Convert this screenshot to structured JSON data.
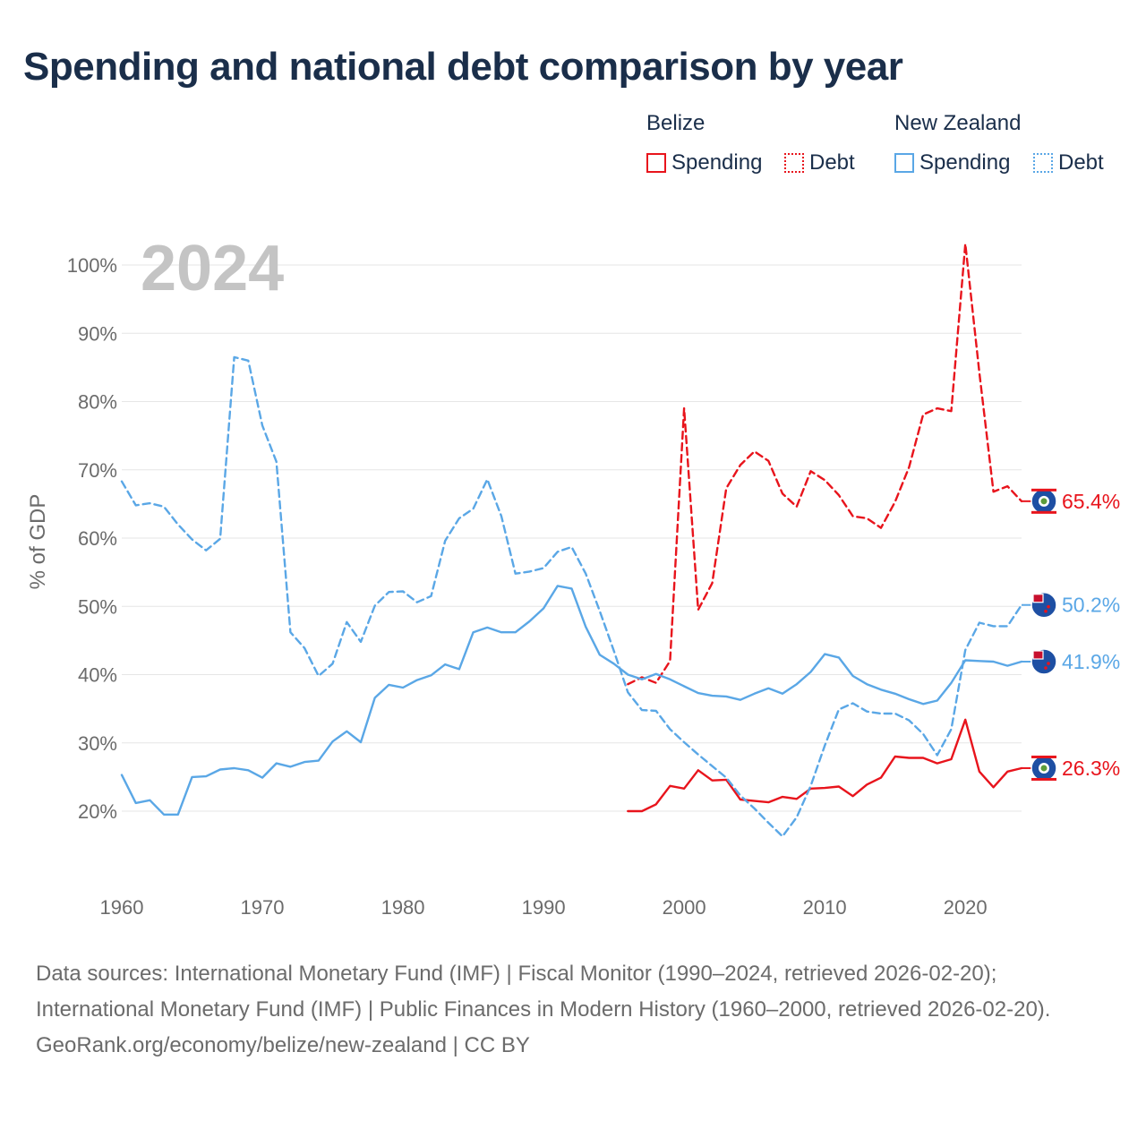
{
  "title": "Spending and national debt comparison by year",
  "legend": {
    "groups": [
      {
        "name": "Belize",
        "color": "#e8141c",
        "items": [
          {
            "label": "Spending",
            "style": "solid"
          },
          {
            "label": "Debt",
            "style": "dotted"
          }
        ]
      },
      {
        "name": "New Zealand",
        "color": "#5aa7e6",
        "items": [
          {
            "label": "Spending",
            "style": "solid"
          },
          {
            "label": "Debt",
            "style": "dotted"
          }
        ]
      }
    ]
  },
  "chart_data": {
    "type": "line",
    "year_label": "2024",
    "ylabel": "% of GDP",
    "xlabel": "",
    "xlim": [
      1960,
      2024
    ],
    "ylim": [
      10,
      104
    ],
    "x_ticks": [
      1960,
      1970,
      1980,
      1990,
      2000,
      2010,
      2020
    ],
    "y_ticks": [
      20,
      30,
      40,
      50,
      60,
      70,
      80,
      90,
      100
    ],
    "series": [
      {
        "name": "Belize Debt",
        "country": "Belize",
        "metric": "Debt",
        "color": "#e8141c",
        "dash": "dashed",
        "end_label": "65.4%",
        "x": [
          1996,
          1997,
          1998,
          1999,
          2000,
          2001,
          2002,
          2003,
          2004,
          2005,
          2006,
          2007,
          2008,
          2009,
          2010,
          2011,
          2012,
          2013,
          2014,
          2015,
          2016,
          2017,
          2018,
          2019,
          2020,
          2021,
          2022,
          2023,
          2024
        ],
        "y": [
          38.6,
          39.6,
          38.8,
          42.0,
          79.0,
          49.5,
          53.4,
          67.3,
          70.7,
          72.7,
          71.3,
          66.5,
          64.6,
          69.8,
          68.5,
          66.3,
          63.2,
          62.9,
          61.5,
          65.3,
          70.4,
          78.1,
          79.0,
          78.6,
          103.1,
          84.2,
          66.8,
          67.6,
          65.4
        ]
      },
      {
        "name": "Belize Spending",
        "country": "Belize",
        "metric": "Spending",
        "color": "#e8141c",
        "dash": "solid",
        "end_label": "26.3%",
        "x": [
          1996,
          1997,
          1998,
          1999,
          2000,
          2001,
          2002,
          2003,
          2004,
          2005,
          2006,
          2007,
          2008,
          2009,
          2010,
          2011,
          2012,
          2013,
          2014,
          2015,
          2016,
          2017,
          2018,
          2019,
          2020,
          2021,
          2022,
          2023,
          2024
        ],
        "y": [
          20.0,
          20.0,
          21.0,
          23.7,
          23.3,
          26.0,
          24.5,
          24.6,
          21.7,
          21.5,
          21.3,
          22.1,
          21.8,
          23.3,
          23.4,
          23.6,
          22.2,
          23.9,
          24.9,
          28.0,
          27.8,
          27.8,
          27.0,
          27.6,
          33.4,
          25.8,
          23.5,
          25.8,
          26.3
        ]
      },
      {
        "name": "New Zealand Debt",
        "country": "New Zealand",
        "metric": "Debt",
        "color": "#5aa7e6",
        "dash": "dashed",
        "end_label": "50.2%",
        "x": [
          1960,
          1961,
          1962,
          1963,
          1964,
          1965,
          1966,
          1967,
          1968,
          1969,
          1970,
          1971,
          1972,
          1973,
          1974,
          1975,
          1976,
          1977,
          1978,
          1979,
          1980,
          1981,
          1982,
          1983,
          1984,
          1985,
          1986,
          1987,
          1988,
          1989,
          1990,
          1991,
          1992,
          1993,
          1994,
          1995,
          1996,
          1997,
          1998,
          1999,
          2000,
          2001,
          2002,
          2003,
          2004,
          2005,
          2006,
          2007,
          2008,
          2009,
          2010,
          2011,
          2012,
          2013,
          2014,
          2015,
          2016,
          2017,
          2018,
          2019,
          2020,
          2021,
          2022,
          2023,
          2024
        ],
        "y": [
          68.3,
          64.8,
          65.1,
          64.6,
          62.0,
          59.8,
          58.2,
          59.9,
          86.5,
          86.0,
          76.5,
          71.2,
          46.2,
          43.9,
          39.8,
          41.6,
          47.7,
          44.8,
          50.1,
          52.1,
          52.2,
          50.6,
          51.5,
          59.6,
          62.9,
          64.3,
          68.6,
          63.2,
          54.8,
          55.1,
          55.6,
          58.0,
          58.7,
          54.8,
          49.3,
          43.5,
          37.4,
          34.8,
          34.7,
          32.0,
          30.1,
          28.3,
          26.6,
          24.9,
          22.3,
          20.4,
          18.3,
          16.3,
          19.1,
          23.7,
          29.6,
          34.9,
          35.8,
          34.6,
          34.3,
          34.3,
          33.3,
          31.3,
          28.2,
          32.0,
          43.6,
          47.6,
          47.1,
          47.1,
          50.2
        ]
      },
      {
        "name": "New Zealand Spending",
        "country": "New Zealand",
        "metric": "Spending",
        "color": "#5aa7e6",
        "dash": "solid",
        "end_label": "41.9%",
        "x": [
          1960,
          1961,
          1962,
          1963,
          1964,
          1965,
          1966,
          1967,
          1968,
          1969,
          1970,
          1971,
          1972,
          1973,
          1974,
          1975,
          1976,
          1977,
          1978,
          1979,
          1980,
          1981,
          1982,
          1983,
          1984,
          1985,
          1986,
          1987,
          1988,
          1989,
          1990,
          1991,
          1992,
          1993,
          1994,
          1995,
          1996,
          1997,
          1998,
          1999,
          2000,
          2001,
          2002,
          2003,
          2004,
          2005,
          2006,
          2007,
          2008,
          2009,
          2010,
          2011,
          2012,
          2013,
          2014,
          2015,
          2016,
          2017,
          2018,
          2019,
          2020,
          2021,
          2022,
          2023,
          2024
        ],
        "y": [
          25.3,
          21.2,
          21.6,
          19.5,
          19.5,
          25.0,
          25.1,
          26.1,
          26.3,
          26.0,
          24.9,
          27.0,
          26.5,
          27.2,
          27.4,
          30.2,
          31.7,
          30.1,
          36.6,
          38.5,
          38.1,
          39.2,
          39.9,
          41.5,
          40.8,
          46.2,
          46.9,
          46.2,
          46.2,
          47.8,
          49.7,
          53.0,
          52.6,
          47.0,
          42.9,
          41.6,
          40.0,
          39.3,
          40.1,
          39.3,
          38.3,
          37.3,
          36.9,
          36.8,
          36.3,
          37.2,
          38.0,
          37.2,
          38.6,
          40.4,
          43.0,
          42.5,
          39.8,
          38.6,
          37.8,
          37.2,
          36.4,
          35.7,
          36.2,
          38.8,
          42.1,
          42.0,
          41.9,
          41.3,
          41.9
        ]
      }
    ]
  },
  "footer": {
    "sources": "Data sources: International Monetary Fund (IMF) | Fiscal Monitor (1990–2024, retrieved 2026-02-20); International Monetary Fund (IMF) | Public Finances in Modern History (1960–2000, retrieved 2026-02-20).",
    "attribution": "GeoRank.org/economy/belize/new-zealand | CC BY"
  }
}
